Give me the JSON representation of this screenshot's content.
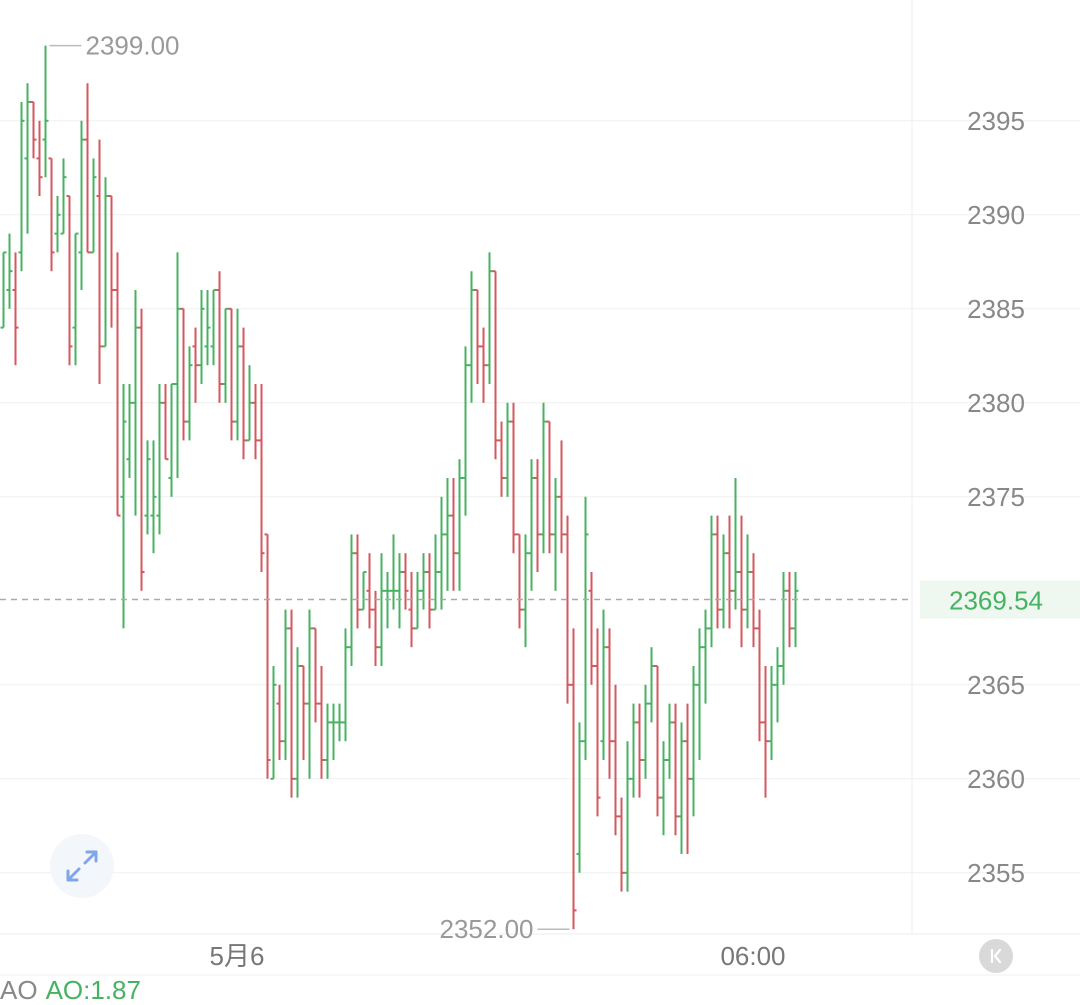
{
  "chart_data": {
    "type": "ohlc",
    "ylim": [
      2351,
      2401
    ],
    "y_ticks": [
      2395,
      2390,
      2385,
      2380,
      2375,
      2365,
      2360,
      2355
    ],
    "x_ticks": [
      {
        "index": 39,
        "label": "5月6"
      },
      {
        "index": 125,
        "label": "06:00"
      }
    ],
    "current_price": "2369.54",
    "max_label": "2399.00",
    "min_label": "2352.00",
    "colors": {
      "up": "#47b262",
      "down": "#d5575f",
      "current": "#47b262"
    },
    "bars": [
      [
        2384,
        2388,
        2384,
        2388
      ],
      [
        2386,
        2389,
        2385,
        2387
      ],
      [
        2386,
        2388,
        2382,
        2384
      ],
      [
        2388,
        2396,
        2387,
        2395
      ],
      [
        2393,
        2397,
        2389,
        2396
      ],
      [
        2396,
        2396,
        2393,
        2394
      ],
      [
        2393,
        2395,
        2391,
        2392
      ],
      [
        2394,
        2399,
        2392,
        2395
      ],
      [
        2393,
        2393,
        2387,
        2388
      ],
      [
        2389,
        2391,
        2388,
        2390
      ],
      [
        2389,
        2393,
        2389,
        2392
      ],
      [
        2391,
        2391,
        2382,
        2383
      ],
      [
        2384,
        2389,
        2382,
        2389
      ],
      [
        2388,
        2395,
        2386,
        2394
      ],
      [
        2394,
        2397,
        2388,
        2388
      ],
      [
        2388,
        2393,
        2388,
        2392
      ],
      [
        2391,
        2394,
        2381,
        2383
      ],
      [
        2383,
        2392,
        2383,
        2391
      ],
      [
        2391,
        2391,
        2384,
        2386
      ],
      [
        2386,
        2388,
        2374,
        2374
      ],
      [
        2375,
        2381,
        2368,
        2379
      ],
      [
        2377,
        2381,
        2376,
        2380
      ],
      [
        2380,
        2386,
        2374,
        2384
      ],
      [
        2384,
        2385,
        2370,
        2371
      ],
      [
        2374,
        2378,
        2373,
        2377
      ],
      [
        2374,
        2378,
        2372,
        2375
      ],
      [
        2374,
        2381,
        2373,
        2380
      ],
      [
        2380,
        2381,
        2377,
        2377
      ],
      [
        2376,
        2381,
        2375,
        2381
      ],
      [
        2381,
        2388,
        2376,
        2385
      ],
      [
        2385,
        2385,
        2378,
        2379
      ],
      [
        2379,
        2383,
        2378,
        2382
      ],
      [
        2383,
        2384,
        2380,
        2382
      ],
      [
        2382,
        2386,
        2381,
        2385
      ],
      [
        2383,
        2386,
        2382,
        2384
      ],
      [
        2383,
        2386,
        2382,
        2386
      ],
      [
        2386,
        2387,
        2380,
        2381
      ],
      [
        2381,
        2385,
        2380,
        2385
      ],
      [
        2385,
        2385,
        2378,
        2379
      ],
      [
        2379,
        2385,
        2378,
        2383
      ],
      [
        2383,
        2384,
        2377,
        2378
      ],
      [
        2378,
        2382,
        2378,
        2380
      ],
      [
        2380,
        2381,
        2377,
        2378
      ],
      [
        2378,
        2381,
        2371,
        2372
      ],
      [
        2373,
        2373,
        2360,
        2361
      ],
      [
        2360,
        2366,
        2360,
        2365
      ],
      [
        2364,
        2365,
        2361,
        2362
      ],
      [
        2362,
        2369,
        2361,
        2368
      ],
      [
        2368,
        2369,
        2359,
        2360
      ],
      [
        2360,
        2367,
        2359,
        2366
      ],
      [
        2366,
        2366,
        2361,
        2364
      ],
      [
        2364,
        2369,
        2360,
        2368
      ],
      [
        2368,
        2368,
        2363,
        2364
      ],
      [
        2364,
        2366,
        2360,
        2361
      ],
      [
        2361,
        2364,
        2360,
        2363
      ],
      [
        2363,
        2364,
        2361,
        2363
      ],
      [
        2363,
        2364,
        2362,
        2363
      ],
      [
        2363,
        2368,
        2362,
        2367
      ],
      [
        2367,
        2373,
        2366,
        2372
      ],
      [
        2372,
        2373,
        2368,
        2369
      ],
      [
        2369,
        2371,
        2369,
        2371
      ],
      [
        2370,
        2372,
        2368,
        2369
      ],
      [
        2369,
        2370,
        2366,
        2367
      ],
      [
        2367,
        2372,
        2366,
        2370
      ],
      [
        2370,
        2371,
        2368,
        2370
      ],
      [
        2370,
        2373,
        2369,
        2370
      ],
      [
        2370,
        2372,
        2368,
        2371
      ],
      [
        2371,
        2372,
        2369,
        2370
      ],
      [
        2369,
        2371,
        2367,
        2368
      ],
      [
        2368,
        2371,
        2368,
        2370
      ],
      [
        2370,
        2372,
        2369,
        2371
      ],
      [
        2371,
        2372,
        2368,
        2369
      ],
      [
        2369,
        2373,
        2369,
        2371
      ],
      [
        2371,
        2375,
        2369,
        2373
      ],
      [
        2373,
        2376,
        2370,
        2374
      ],
      [
        2374,
        2376,
        2370,
        2372
      ],
      [
        2372,
        2377,
        2370,
        2376
      ],
      [
        2376,
        2383,
        2374,
        2382
      ],
      [
        2382,
        2387,
        2380,
        2386
      ],
      [
        2386,
        2386,
        2381,
        2383
      ],
      [
        2383,
        2384,
        2380,
        2382
      ],
      [
        2382,
        2388,
        2381,
        2387
      ],
      [
        2387,
        2387,
        2377,
        2378
      ],
      [
        2378,
        2379,
        2375,
        2376
      ],
      [
        2376,
        2380,
        2375,
        2379
      ],
      [
        2379,
        2380,
        2372,
        2373
      ],
      [
        2373,
        2373,
        2368,
        2369
      ],
      [
        2369,
        2373,
        2367,
        2372
      ],
      [
        2372,
        2377,
        2370,
        2376
      ],
      [
        2376,
        2377,
        2371,
        2373
      ],
      [
        2373,
        2380,
        2372,
        2379
      ],
      [
        2379,
        2379,
        2372,
        2373
      ],
      [
        2373,
        2376,
        2370,
        2375
      ],
      [
        2375,
        2378,
        2372,
        2373
      ],
      [
        2373,
        2374,
        2364,
        2365
      ],
      [
        2365,
        2368,
        2352,
        2353
      ],
      [
        2356,
        2363,
        2355,
        2362
      ],
      [
        2362,
        2375,
        2361,
        2373
      ],
      [
        2370,
        2371,
        2365,
        2366
      ],
      [
        2366,
        2368,
        2358,
        2359
      ],
      [
        2362,
        2369,
        2361,
        2367
      ],
      [
        2367,
        2368,
        2360,
        2362
      ],
      [
        2362,
        2365,
        2357,
        2358
      ],
      [
        2358,
        2359,
        2354,
        2355
      ],
      [
        2355,
        2362,
        2354,
        2360
      ],
      [
        2360,
        2364,
        2359,
        2363
      ],
      [
        2363,
        2364,
        2359,
        2361
      ],
      [
        2361,
        2365,
        2360,
        2364
      ],
      [
        2364,
        2367,
        2363,
        2366
      ],
      [
        2366,
        2366,
        2358,
        2359
      ],
      [
        2359,
        2362,
        2357,
        2361
      ],
      [
        2361,
        2364,
        2360,
        2363
      ],
      [
        2363,
        2364,
        2357,
        2358
      ],
      [
        2358,
        2363,
        2356,
        2362
      ],
      [
        2362,
        2364,
        2356,
        2360
      ],
      [
        2360,
        2366,
        2358,
        2365
      ],
      [
        2365,
        2368,
        2361,
        2367
      ],
      [
        2367,
        2369,
        2364,
        2368
      ],
      [
        2368,
        2374,
        2367,
        2373
      ],
      [
        2373,
        2374,
        2368,
        2369
      ],
      [
        2369,
        2373,
        2368,
        2372
      ],
      [
        2372,
        2374,
        2368,
        2370
      ],
      [
        2370,
        2376,
        2369,
        2371
      ],
      [
        2371,
        2374,
        2367,
        2369
      ],
      [
        2369,
        2373,
        2368,
        2371
      ],
      [
        2371,
        2372,
        2367,
        2368
      ],
      [
        2368,
        2369,
        2362,
        2363
      ],
      [
        2363,
        2366,
        2359,
        2362
      ],
      [
        2362,
        2366,
        2361,
        2365
      ],
      [
        2365,
        2367,
        2363,
        2366
      ],
      [
        2366,
        2371,
        2365,
        2370
      ],
      [
        2370,
        2371,
        2367,
        2368
      ],
      [
        2368,
        2371,
        2367,
        2370
      ]
    ]
  },
  "indicator": {
    "name": "AO",
    "value_label": "AO:1.87"
  },
  "icons": {
    "expand": "expand-arrows-icon",
    "collapse": "collapse-left-icon"
  }
}
